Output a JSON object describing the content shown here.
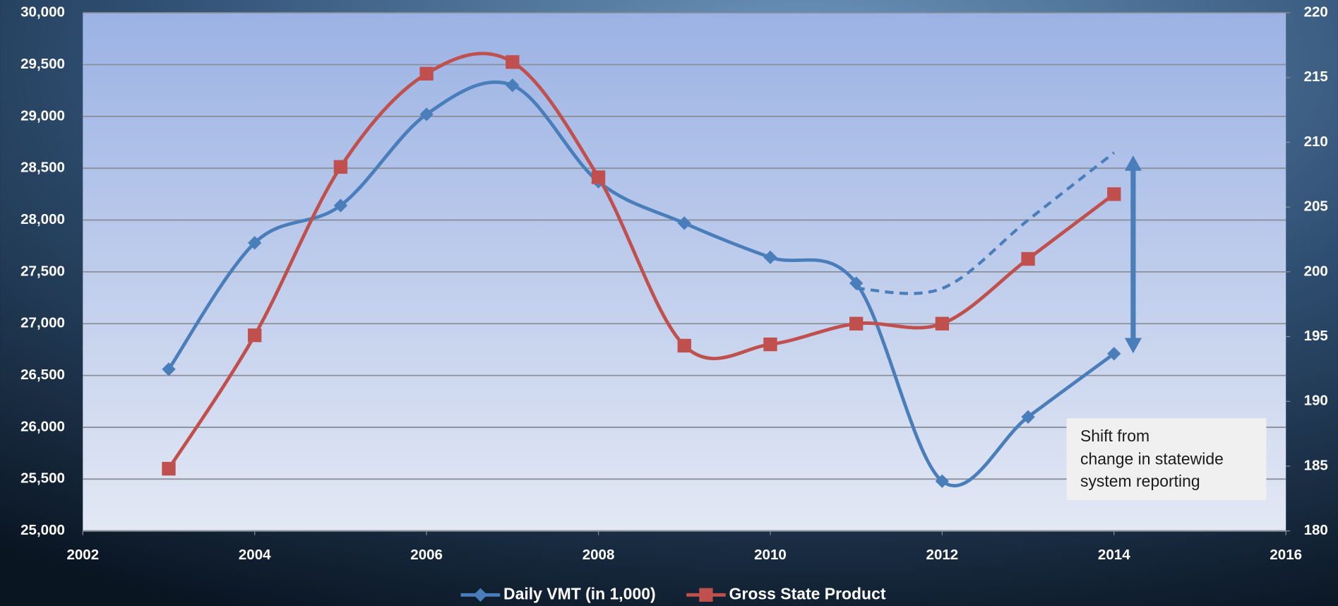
{
  "chart_data": {
    "type": "line",
    "x": [
      2003,
      2004,
      2005,
      2006,
      2007,
      2008,
      2009,
      2010,
      2011,
      2012,
      2013,
      2014
    ],
    "xlim": [
      2002,
      2016
    ],
    "xticks": [
      2002,
      2004,
      2006,
      2008,
      2010,
      2012,
      2014,
      2016
    ],
    "ylim": [
      25000,
      30000
    ],
    "yticks": [
      {
        "value": 25000,
        "label": "25,000"
      },
      {
        "value": 25500,
        "label": "25,500"
      },
      {
        "value": 26000,
        "label": "26,000"
      },
      {
        "value": 26500,
        "label": "26,500"
      },
      {
        "value": 27000,
        "label": "27,000"
      },
      {
        "value": 27500,
        "label": "27,500"
      },
      {
        "value": 28000,
        "label": "28,000"
      },
      {
        "value": 28500,
        "label": "28,500"
      },
      {
        "value": 29000,
        "label": "29,000"
      },
      {
        "value": 29500,
        "label": "29,500"
      },
      {
        "value": 30000,
        "label": "30,000"
      }
    ],
    "y2lim": [
      180,
      220
    ],
    "y2ticks": [
      180,
      185,
      190,
      195,
      200,
      205,
      210,
      215,
      220
    ],
    "grid": true,
    "legend": "bottom",
    "series": [
      {
        "name": "Daily VMT (in 1,000)",
        "color": "#4a7ebb",
        "marker": "diamond",
        "values": [
          26560,
          27780,
          28140,
          29020,
          29300,
          28370,
          27970,
          27640,
          27390,
          25480,
          26100,
          26710
        ]
      },
      {
        "name": "Gross State Product",
        "color": "#c0504d",
        "marker": "square",
        "axis": "y2",
        "values": [
          184.8,
          195.1,
          208.1,
          215.3,
          216.2,
          207.3,
          194.3,
          194.4,
          196.0,
          196.0,
          201.0,
          206.0
        ]
      },
      {
        "color": "#4a7ebb",
        "dashed": true,
        "values": [
          null,
          null,
          null,
          null,
          null,
          null,
          null,
          null,
          27340,
          27340,
          28000,
          28650
        ]
      }
    ],
    "annotation": [
      "Shift from",
      "change in statewide",
      "system reporting"
    ]
  }
}
